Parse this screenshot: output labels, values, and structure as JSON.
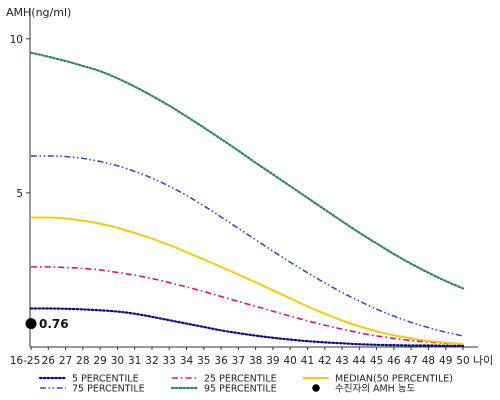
{
  "chart_data": {
    "type": "line",
    "ylabel": "AMH(ng/ml)",
    "xlabel": "나이",
    "x_ticks": [
      "16-25",
      "26",
      "27",
      "28",
      "29",
      "30",
      "31",
      "32",
      "33",
      "34",
      "35",
      "36",
      "37",
      "38",
      "39",
      "40",
      "41",
      "42",
      "43",
      "44",
      "45",
      "46",
      "47",
      "48",
      "49",
      "50"
    ],
    "y_ticks": [
      5,
      10
    ],
    "ylim": [
      0,
      11
    ],
    "series": [
      {
        "name": "5 PERCENTILE",
        "color": "#0b0b8c",
        "dash": "dot",
        "values": [
          1.25,
          1.25,
          1.24,
          1.22,
          1.19,
          1.15,
          1.08,
          0.98,
          0.87,
          0.76,
          0.65,
          0.54,
          0.45,
          0.37,
          0.3,
          0.24,
          0.19,
          0.15,
          0.12,
          0.09,
          0.07,
          0.06,
          0.05,
          0.05,
          0.04,
          0.04
        ]
      },
      {
        "name": "25 PERCENTILE",
        "color": "#d8127e",
        "dash": "dashdot",
        "values": [
          2.6,
          2.6,
          2.58,
          2.55,
          2.5,
          2.42,
          2.33,
          2.22,
          2.09,
          1.95,
          1.8,
          1.64,
          1.48,
          1.32,
          1.16,
          1.0,
          0.85,
          0.71,
          0.58,
          0.46,
          0.36,
          0.28,
          0.21,
          0.16,
          0.12,
          0.1
        ]
      },
      {
        "name": "MEDIAN(50 PERCENTILE)",
        "color": "#ffc90e",
        "dash": "solid",
        "values": [
          4.2,
          4.2,
          4.17,
          4.1,
          4.0,
          3.87,
          3.7,
          3.52,
          3.31,
          3.08,
          2.84,
          2.6,
          2.35,
          2.1,
          1.84,
          1.58,
          1.32,
          1.08,
          0.86,
          0.67,
          0.51,
          0.38,
          0.28,
          0.2,
          0.14,
          0.1
        ]
      },
      {
        "name": "75 PERCENTILE",
        "color": "#2f52c4",
        "dash": "dashdotdot",
        "values": [
          6.2,
          6.2,
          6.18,
          6.12,
          6.02,
          5.88,
          5.7,
          5.48,
          5.22,
          4.92,
          4.58,
          4.22,
          3.85,
          3.48,
          3.11,
          2.75,
          2.41,
          2.08,
          1.77,
          1.49,
          1.23,
          1.0,
          0.8,
          0.63,
          0.48,
          0.36
        ]
      },
      {
        "name": "95 PERCENTILE",
        "color": "#2e8b57",
        "dash": "dot",
        "values": [
          9.55,
          9.42,
          9.28,
          9.12,
          8.95,
          8.72,
          8.45,
          8.15,
          7.83,
          7.48,
          7.12,
          6.75,
          6.37,
          5.98,
          5.6,
          5.22,
          4.84,
          4.46,
          4.08,
          3.71,
          3.36,
          3.02,
          2.7,
          2.41,
          2.14,
          1.9
        ]
      }
    ],
    "point": {
      "name": "수진자의 AMH 농도",
      "x_index": 0,
      "value": 0.76,
      "label": "0.76",
      "color": "#000000"
    },
    "legend_position": "bottom",
    "grid": false
  }
}
